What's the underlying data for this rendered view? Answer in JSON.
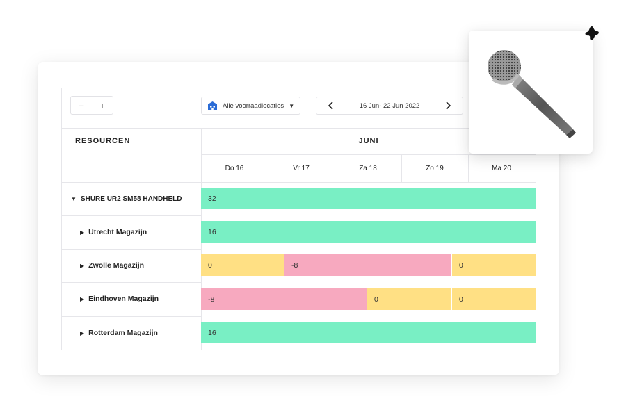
{
  "toolbar": {
    "zoom_out_label": "−",
    "zoom_in_label": "+",
    "location_select_value": "Alle voorraadlocaties",
    "location_icon": "warehouse-icon",
    "prev_icon": "chevron-left-icon",
    "next_icon": "chevron-right-icon",
    "date_range": "16 Jun- 22 Jun 2022"
  },
  "columns": {
    "resources_header": "RESOURCEN",
    "month": "JUNI",
    "days": [
      "Do 16",
      "Vr 17",
      "Za 18",
      "Zo 19",
      "Ma 20"
    ]
  },
  "rows": [
    {
      "label": "SHURE UR2 SM58 HANDHELD",
      "expanded": true,
      "bars": [
        {
          "value": "32",
          "status": "available",
          "start_day": 0,
          "span_days": 5
        }
      ]
    },
    {
      "label": "Utrecht Magazijn",
      "expanded": false,
      "bars": [
        {
          "value": "16",
          "status": "available",
          "start_day": 0,
          "span_days": 5
        }
      ]
    },
    {
      "label": "Zwolle Magazijn",
      "expanded": false,
      "bars": [
        {
          "value": "0",
          "status": "empty",
          "start_day": 0,
          "span_days": 1.25
        },
        {
          "value": "-8",
          "status": "shortage",
          "start_day": 1.25,
          "span_days": 2.5
        },
        {
          "value": "0",
          "status": "empty",
          "start_day": 3.75,
          "span_days": 1.25
        }
      ]
    },
    {
      "label": "Eindhoven Magazijn",
      "expanded": false,
      "bars": [
        {
          "value": "-8",
          "status": "shortage",
          "start_day": 0,
          "span_days": 2.5
        },
        {
          "value": "0",
          "status": "empty",
          "start_day": 2.5,
          "span_days": 1.25
        },
        {
          "value": "0",
          "status": "empty",
          "start_day": 3.75,
          "span_days": 1.25
        }
      ]
    },
    {
      "label": "Rotterdam Magazijn",
      "expanded": false,
      "bars": [
        {
          "value": "16",
          "status": "available",
          "start_day": 0,
          "span_days": 5
        }
      ]
    }
  ],
  "colors": {
    "available": "#79efc4",
    "empty": "#ffe084",
    "shortage": "#f7a9bf",
    "accent": "#2b6cd6"
  },
  "product_card": {
    "image": "microphone-image",
    "pin_icon": "pin-icon"
  }
}
